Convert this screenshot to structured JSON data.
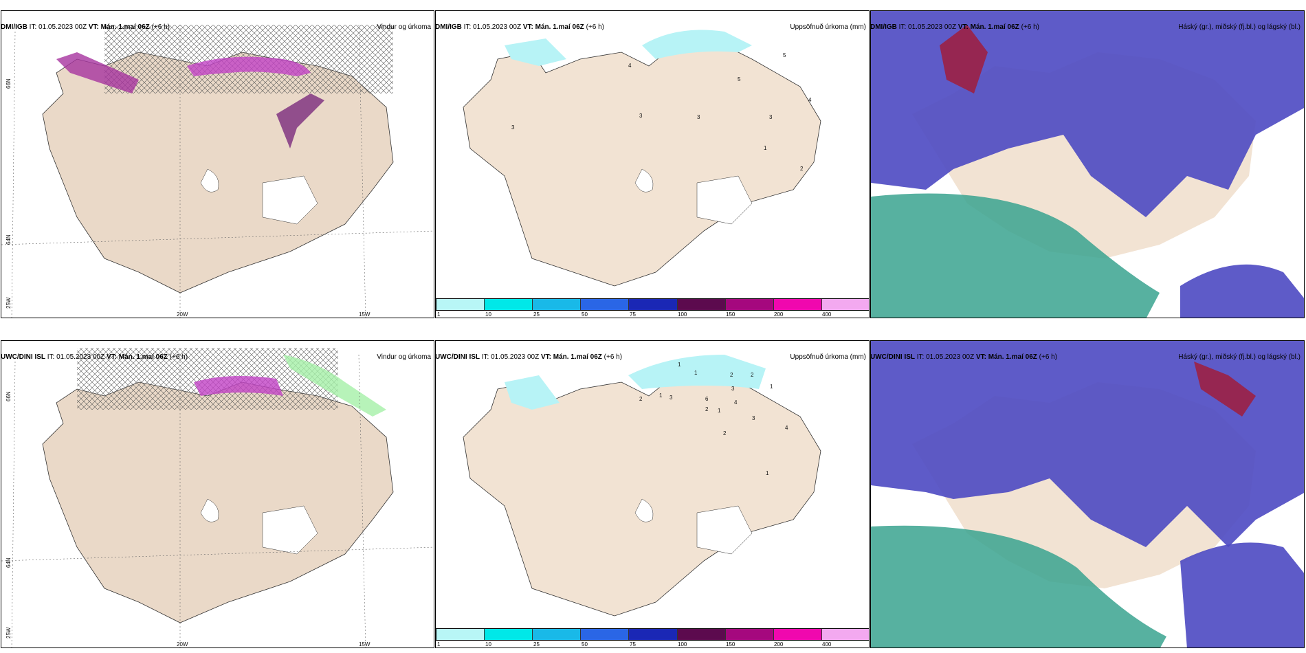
{
  "rows": [
    {
      "left": {
        "source": "DMI/IGB",
        "it": "IT: 01.05.2023 00Z",
        "vt_label": "VT:",
        "vt": "Mán. 1.maí 06Z",
        "lead": "(+6 h)",
        "right": "Vindur og úrkoma"
      },
      "mid": {
        "source": "DMI/IGB",
        "it": "IT: 01.05.2023 00Z",
        "vt_label": "VT:",
        "vt": "Mán. 1.maí 06Z",
        "lead": "(+6 h)",
        "right": "Uppsöfnuð úrkoma (mm)"
      },
      "right": {
        "source": "DMI/IGB",
        "it": "IT: 01.05.2023 00Z",
        "vt_label": "VT:",
        "vt": "Mán. 1.maí 06Z",
        "lead": "(+6 h)",
        "right": "Háský (gr.), miðský (fj.bl.) og lágský (bl.)"
      }
    },
    {
      "left": {
        "source": "UWC/DINI ISL",
        "it": "IT: 01.05.2023 00Z",
        "vt_label": "VT:",
        "vt": "Mán. 1.maí 06Z",
        "lead": "(+6 h)",
        "right": "Vindur og úrkoma"
      },
      "mid": {
        "source": "UWC/DINI ISL",
        "it": "IT: 01.05.2023 00Z",
        "vt_label": "VT:",
        "vt": "Mán. 1.maí 06Z",
        "lead": "(+6 h)",
        "right": "Uppsöfnuð úrkoma (mm)"
      },
      "right": {
        "source": "UWC/DINI ISL",
        "it": "IT: 01.05.2023 00Z",
        "vt_label": "VT:",
        "vt": "Mán. 1.maí 06Z",
        "lead": "(+6 h)",
        "right": "Háský (gr.), miðský (fj.bl.) og lágský (bl.)"
      }
    }
  ],
  "grid_labels": {
    "lat1": "66N",
    "lat2": "64N",
    "lon1": "20W",
    "lon2": "15W",
    "corner": "25W"
  },
  "colorbar": {
    "ticks": [
      "1",
      "10",
      "25",
      "50",
      "75",
      "100",
      "150",
      "200",
      "400"
    ],
    "colors": [
      "#b8f6f6",
      "#00e8e8",
      "#19b9e8",
      "#2a66e6",
      "#1a27b5",
      "#5c0a4e",
      "#a5087e",
      "#f008ae",
      "#f3a9f0"
    ]
  },
  "precip_labels_top": [
    "5",
    "5",
    "3",
    "3",
    "1",
    "2",
    "4",
    "3",
    "4",
    "3"
  ],
  "precip_labels_bottom": [
    "1",
    "1",
    "2",
    "3",
    "2",
    "1",
    "2",
    "1",
    "3",
    "6",
    "2",
    "1",
    "3",
    "4",
    "2",
    "1",
    "4"
  ],
  "colors": {
    "land": "#f2e3d3",
    "cloud_high": "#4d49c2",
    "cloud_low": "#3aa38f",
    "precip": "#c242c6",
    "precip_dark": "#7a2a7d",
    "cyan": "#b7f3f6"
  }
}
